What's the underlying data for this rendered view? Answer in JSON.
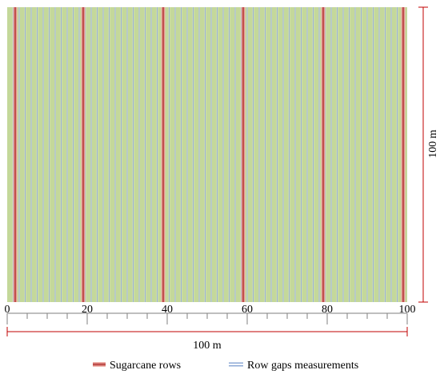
{
  "colors": {
    "field_fill": "#c4d89a",
    "sugarcane_row": "#c0504d",
    "sugarcane_row_edge": "#f2b8b0",
    "gap_line": "#8ea9d6",
    "gap_line_edge": "#ffffff",
    "dimension_line": "#c00000",
    "axis": "#7f7f7f"
  },
  "axis": {
    "ticks": [
      "0",
      "20",
      "40",
      "60",
      "80",
      "100"
    ],
    "tick_values": [
      0,
      20,
      40,
      60,
      80,
      100
    ],
    "minor_step": 5
  },
  "field": {
    "width_m": 100,
    "height_m": 100,
    "sugarcane_row_positions_m": [
      2,
      19,
      39,
      59,
      79,
      99
    ],
    "gap_measurement_spacing_m": 1.5
  },
  "dimensions": {
    "horizontal_label": "100 m",
    "vertical_label": "100 m"
  },
  "legend": {
    "sugarcane_rows": "Sugarcane rows",
    "row_gaps": "Row gaps measurements"
  }
}
